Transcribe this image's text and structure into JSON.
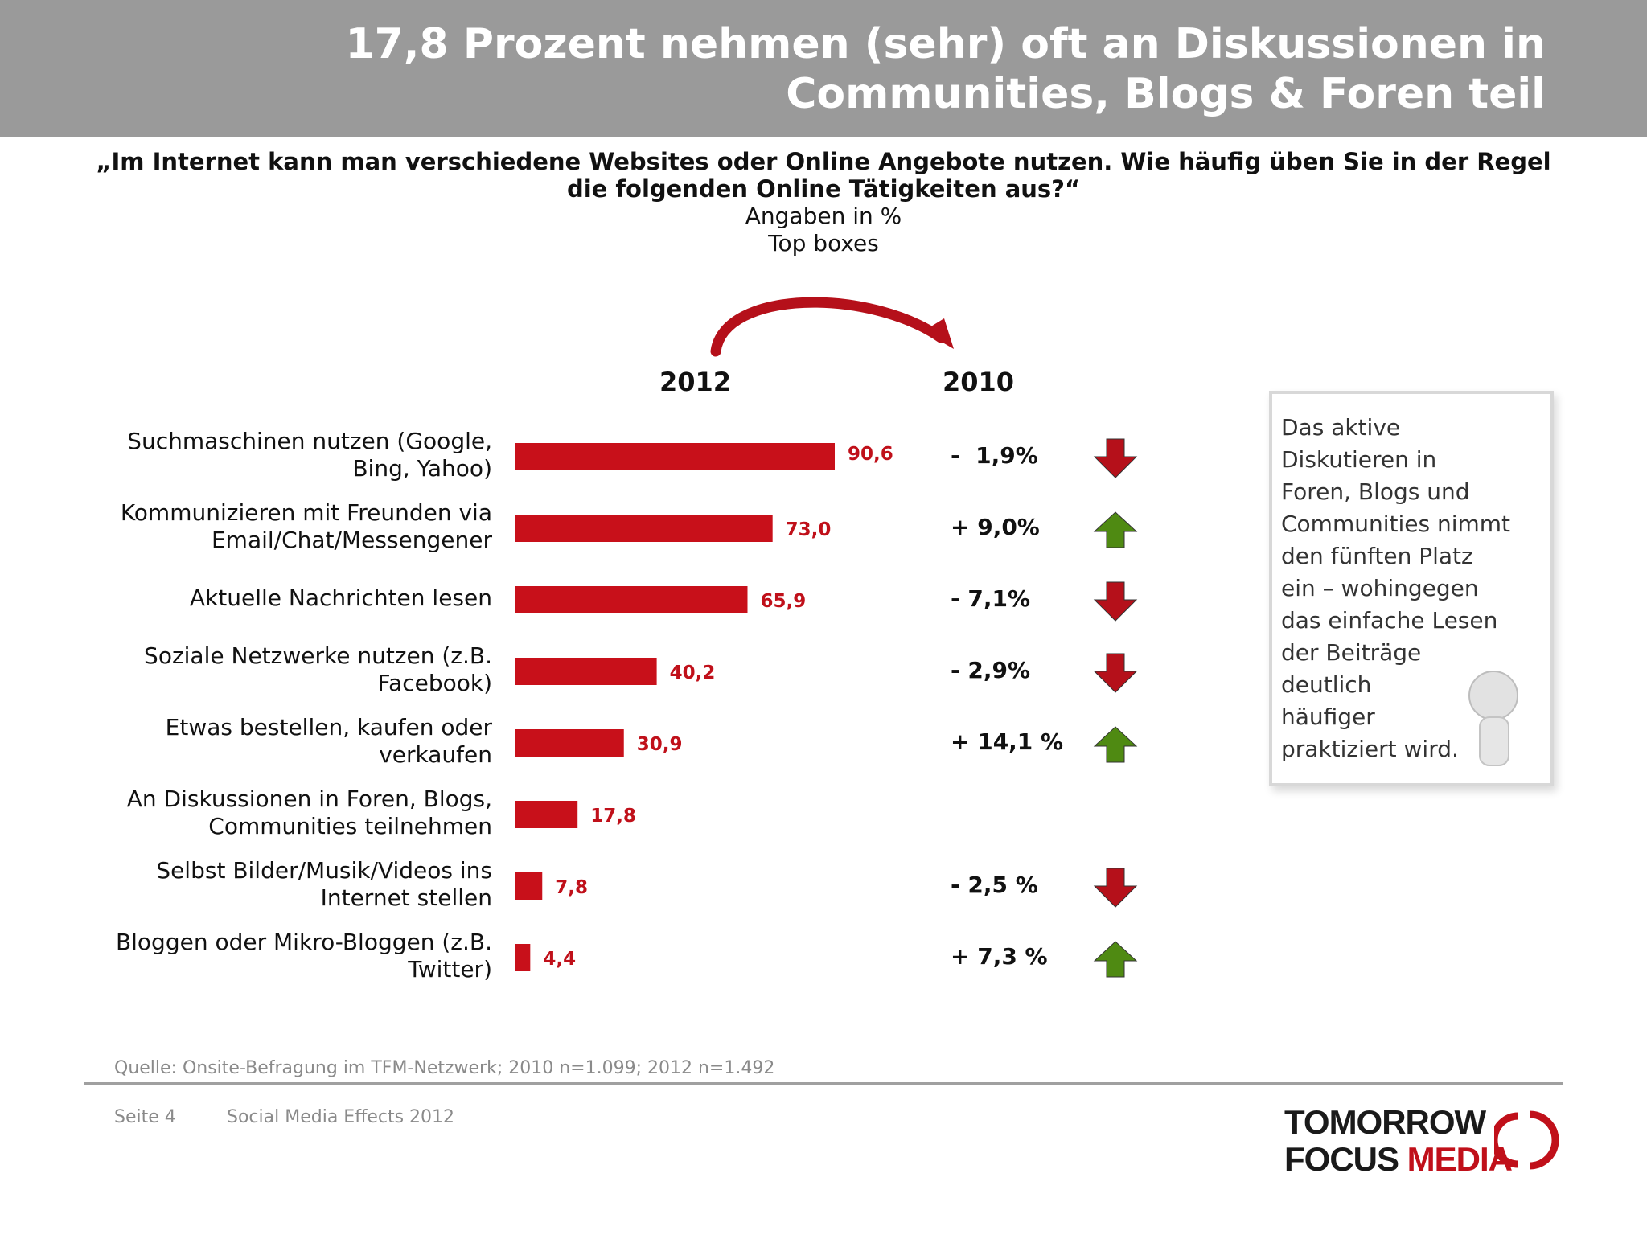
{
  "header": {
    "title_line1": "17,8 Prozent nehmen (sehr) oft an Diskussionen in",
    "title_line2": "Communities, Blogs & Foren teil"
  },
  "question": {
    "line1": "„Im Internet kann man verschiedene Websites oder Online Angebote nutzen. Wie häufig üben Sie in der Regel",
    "line2": "die folgenden Online Tätigkeiten aus?“",
    "unit": "Angaben in %",
    "note": "Top boxes"
  },
  "years": {
    "current": "2012",
    "previous": "2010"
  },
  "chart_data": {
    "type": "bar",
    "orientation": "horizontal",
    "categories": [
      [
        "Suchmaschinen nutzen (Google,",
        "Bing, Yahoo)"
      ],
      [
        "Kommunizieren mit Freunden via",
        "Email/Chat/Messengener"
      ],
      [
        "Aktuelle Nachrichten lesen"
      ],
      [
        "Soziale Netzwerke nutzen (z.B.",
        "Facebook)"
      ],
      [
        "Etwas bestellen, kaufen oder",
        "verkaufen"
      ],
      [
        "An Diskussionen in Foren, Blogs,",
        "Communities teilnehmen"
      ],
      [
        "Selbst Bilder/Musik/Videos ins",
        "Internet stellen"
      ],
      [
        "Bloggen oder Mikro-Bloggen (z.B.",
        "Twitter)"
      ]
    ],
    "values": [
      90.6,
      73.0,
      65.9,
      40.2,
      30.9,
      17.8,
      7.8,
      4.4
    ],
    "value_labels": [
      "90,6",
      "73,0",
      "65,9",
      "40,2",
      "30,9",
      "17,8",
      "7,8",
      "4,4"
    ],
    "changes": [
      "-  1,9%",
      "+ 9,0%",
      "- 7,1%",
      "- 2,9%",
      "+ 14,1 %",
      "",
      "- 2,5 %",
      "+ 7,3 %"
    ],
    "trend": [
      "down",
      "up",
      "down",
      "down",
      "up",
      "none",
      "down",
      "up"
    ],
    "xlim": [
      0,
      100
    ],
    "colors": {
      "bar": "#c8101a",
      "label": "#c0101a",
      "down": "#b5101a",
      "up": "#4f8a12"
    }
  },
  "note": {
    "lines": [
      "Das aktive",
      "Diskutieren in",
      "Foren, Blogs und",
      "Communities nimmt",
      "den fünften Platz",
      "ein – wohingegen",
      "das einfache Lesen",
      "der Beiträge",
      "deutlich",
      "häufiger",
      "praktiziert wird."
    ]
  },
  "source": "Quelle: Onsite-Befragung im TFM-Netzwerk; 2010 n=1.099; 2012 n=1.492",
  "footer": {
    "page": "Seite 4",
    "title": "Social Media Effects 2012"
  },
  "logo": {
    "line1": "TOMORROW",
    "line2a": "FOCUS ",
    "line2b": "MEDIA"
  }
}
